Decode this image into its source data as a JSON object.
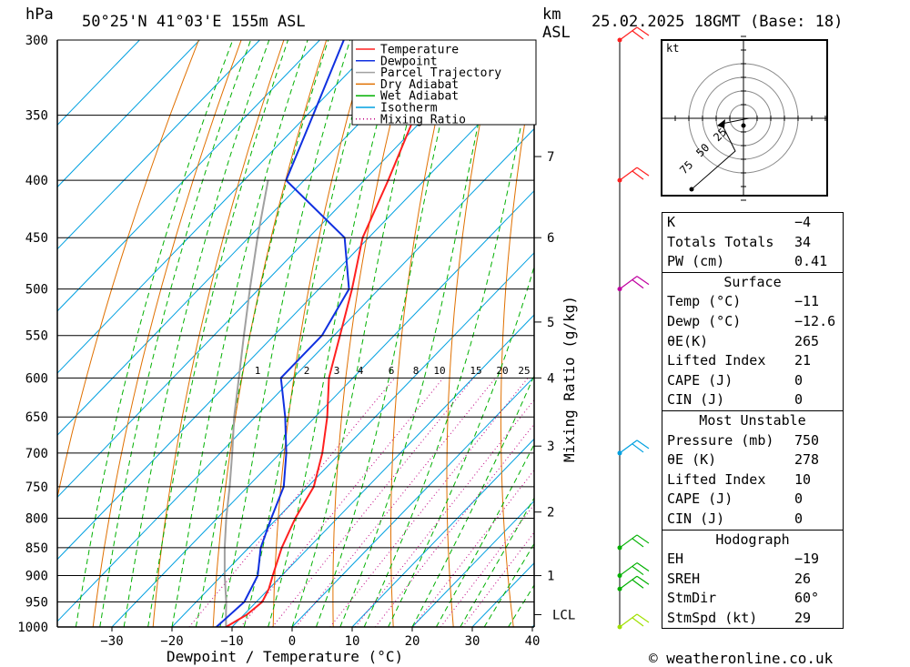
{
  "header": {
    "pressure_unit": "hPa",
    "location": "50°25'N  41°03'E  155m  ASL",
    "km_label": "km",
    "asl_label": "ASL",
    "datetime": "25.02.2025  18GMT  (Base: 18)"
  },
  "footer": {
    "credit": "© weatheronline.co.uk"
  },
  "chart_data": {
    "type": "skew-t",
    "xlabel": "Dewpoint / Temperature (°C)",
    "ylabel": "hPa",
    "right_axis_label": "Mixing Ratio (g/kg)",
    "x_ticks": [
      -30,
      -20,
      -10,
      0,
      10,
      20,
      30,
      40
    ],
    "pressure_levels": [
      300,
      350,
      400,
      450,
      500,
      550,
      600,
      650,
      700,
      750,
      800,
      850,
      900,
      950,
      1000
    ],
    "km_ticks": [
      {
        "km": "7",
        "p": 381
      },
      {
        "km": "6",
        "p": 450
      },
      {
        "km": "5",
        "p": 535
      },
      {
        "km": "4",
        "p": 600
      },
      {
        "km": "3",
        "p": 690
      },
      {
        "km": "2",
        "p": 790
      },
      {
        "km": "1",
        "p": 900
      },
      {
        "km": "LCL",
        "p": 975
      }
    ],
    "mixing_ratio_labels": [
      "1",
      "2",
      "3",
      "4",
      "6",
      "8",
      "10",
      "15",
      "20",
      "25"
    ],
    "mixing_ratio_values": [
      1,
      2,
      3,
      4,
      6,
      8,
      10,
      15,
      20,
      25
    ],
    "legend": [
      "Temperature",
      "Dewpoint",
      "Parcel Trajectory",
      "Dry Adiabat",
      "Wet Adiabat",
      "Isotherm",
      "Mixing Ratio"
    ],
    "colors": {
      "temperature": "#ff2020",
      "dewpoint": "#1030e0",
      "parcel": "#a0a0a0",
      "dry_adiabat": "#e07000",
      "wet_adiabat": "#00b000",
      "isotherm": "#00a0e0",
      "mixing_ratio": "#c00080"
    },
    "temperature": [
      {
        "p": 1000,
        "t": -11
      },
      {
        "p": 975,
        "t": -9.5
      },
      {
        "p": 950,
        "t": -9
      },
      {
        "p": 925,
        "t": -10
      },
      {
        "p": 900,
        "t": -11.5
      },
      {
        "p": 850,
        "t": -14.5
      },
      {
        "p": 800,
        "t": -17
      },
      {
        "p": 750,
        "t": -19
      },
      {
        "p": 700,
        "t": -23
      },
      {
        "p": 650,
        "t": -28
      },
      {
        "p": 600,
        "t": -34
      },
      {
        "p": 550,
        "t": -39
      },
      {
        "p": 500,
        "t": -44.5
      },
      {
        "p": 450,
        "t": -51
      },
      {
        "p": 400,
        "t": -56
      },
      {
        "p": 350,
        "t": -62
      },
      {
        "p": 300,
        "t": -67
      }
    ],
    "dewpoint": [
      {
        "p": 1000,
        "t": -12.6
      },
      {
        "p": 950,
        "t": -12
      },
      {
        "p": 900,
        "t": -14
      },
      {
        "p": 850,
        "t": -18
      },
      {
        "p": 800,
        "t": -21
      },
      {
        "p": 750,
        "t": -24
      },
      {
        "p": 700,
        "t": -29
      },
      {
        "p": 650,
        "t": -35
      },
      {
        "p": 600,
        "t": -42
      },
      {
        "p": 550,
        "t": -42
      },
      {
        "p": 500,
        "t": -45
      },
      {
        "p": 450,
        "t": -54
      },
      {
        "p": 400,
        "t": -73
      },
      {
        "p": 350,
        "t": -79
      },
      {
        "p": 300,
        "t": -86
      }
    ],
    "parcel": [
      {
        "p": 1000,
        "t": -11
      },
      {
        "p": 975,
        "t": -13
      },
      {
        "p": 950,
        "t": -15
      },
      {
        "p": 900,
        "t": -19.5
      },
      {
        "p": 850,
        "t": -24
      },
      {
        "p": 800,
        "t": -28.5
      },
      {
        "p": 750,
        "t": -33
      },
      {
        "p": 700,
        "t": -38
      },
      {
        "p": 650,
        "t": -43.5
      },
      {
        "p": 600,
        "t": -49
      },
      {
        "p": 550,
        "t": -55
      },
      {
        "p": 500,
        "t": -61.5
      },
      {
        "p": 450,
        "t": -68.5
      },
      {
        "p": 400,
        "t": -76
      }
    ],
    "wind_barbs": [
      {
        "p": 300,
        "color": "#ff2020"
      },
      {
        "p": 400,
        "color": "#ff2020"
      },
      {
        "p": 500,
        "color": "#c000a0"
      },
      {
        "p": 700,
        "color": "#00a0e0"
      },
      {
        "p": 850,
        "color": "#00b000"
      },
      {
        "p": 900,
        "color": "#00b000"
      },
      {
        "p": 925,
        "color": "#00b000"
      },
      {
        "p": 1000,
        "color": "#a0e000"
      }
    ],
    "hodograph": {
      "unit_label": "kt",
      "ring_labels": [
        "75",
        "50",
        "25"
      ],
      "points": [
        [
          -3,
          -12
        ],
        [
          -8,
          -2
        ],
        [
          2,
          0
        ],
        [
          -19,
          -26
        ]
      ]
    }
  },
  "indices": {
    "top": [
      {
        "k": "K",
        "v": "-4"
      },
      {
        "k": "Totals Totals",
        "v": "34"
      },
      {
        "k": "PW (cm)",
        "v": "0.41"
      }
    ],
    "surface": {
      "title": "Surface",
      "rows": [
        {
          "k": "Temp (°C)",
          "v": "-11"
        },
        {
          "k": "Dewp (°C)",
          "v": "-12.6"
        },
        {
          "k": "θE(K)",
          "v": "265"
        },
        {
          "k": "Lifted Index",
          "v": "21"
        },
        {
          "k": "CAPE (J)",
          "v": "0"
        },
        {
          "k": "CIN (J)",
          "v": "0"
        }
      ]
    },
    "most_unstable": {
      "title": "Most Unstable",
      "rows": [
        {
          "k": "Pressure (mb)",
          "v": "750"
        },
        {
          "k": "θE (K)",
          "v": "278"
        },
        {
          "k": "Lifted Index",
          "v": "10"
        },
        {
          "k": "CAPE (J)",
          "v": "0"
        },
        {
          "k": "CIN (J)",
          "v": "0"
        }
      ]
    },
    "hodograph": {
      "title": "Hodograph",
      "rows": [
        {
          "k": "EH",
          "v": "-19"
        },
        {
          "k": "SREH",
          "v": "26"
        },
        {
          "k": "StmDir",
          "v": "60°"
        },
        {
          "k": "StmSpd (kt)",
          "v": "29"
        }
      ]
    }
  }
}
